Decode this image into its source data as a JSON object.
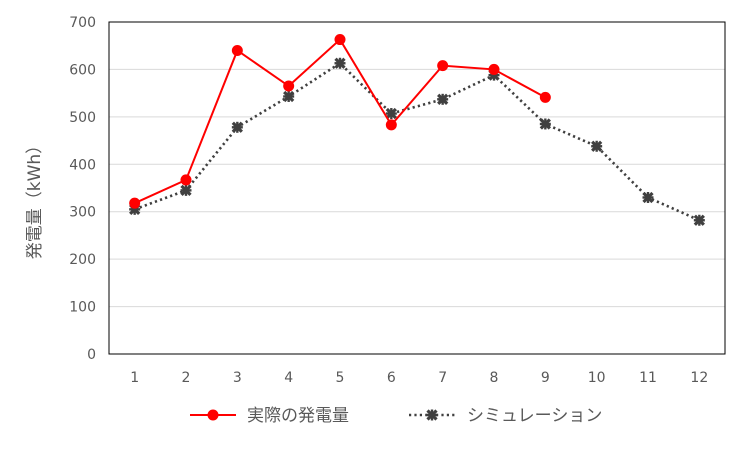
{
  "chart_data": {
    "type": "line",
    "title": "",
    "xlabel": "",
    "ylabel": "発電量（kWh）",
    "categories": [
      "1",
      "2",
      "3",
      "4",
      "5",
      "6",
      "7",
      "8",
      "9",
      "10",
      "11",
      "12"
    ],
    "ylim": [
      0,
      700
    ],
    "yticks": [
      0,
      100,
      200,
      300,
      400,
      500,
      600,
      700
    ],
    "grid": true,
    "legend_position": "bottom",
    "series": [
      {
        "name": "実際の発電量",
        "color": "#ff0000",
        "line_style": "solid",
        "marker": "circle",
        "values": [
          318,
          367,
          640,
          565,
          663,
          483,
          608,
          600,
          541,
          null,
          null,
          null
        ]
      },
      {
        "name": "シミュレーション",
        "color": "#404040",
        "line_style": "dotted",
        "marker": "cross",
        "values": [
          305,
          345,
          478,
          543,
          613,
          507,
          537,
          588,
          485,
          438,
          330,
          282
        ]
      }
    ]
  }
}
